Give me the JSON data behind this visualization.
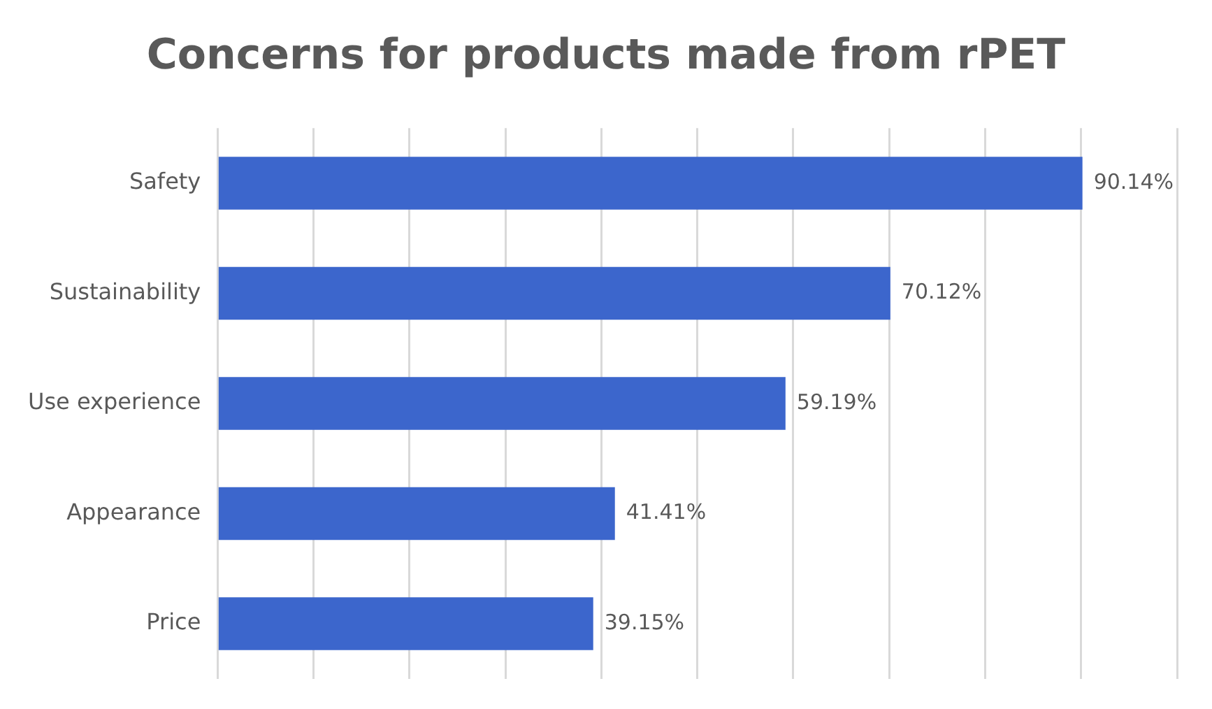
{
  "chart_data": {
    "type": "bar",
    "orientation": "horizontal",
    "title": "Concerns for products made from rPET",
    "categories": [
      "Safety",
      "Sustainability",
      "Use experience",
      "Appearance",
      "Price"
    ],
    "values": [
      90.14,
      70.12,
      59.19,
      41.41,
      39.15
    ],
    "value_labels": [
      "90.14%",
      "70.12%",
      "59.19%",
      "41.41%",
      "39.15%"
    ],
    "color": "#3c66cc",
    "xlim": [
      0,
      100
    ],
    "xticks": [
      {
        "value": 0,
        "label": null
      },
      {
        "value": 10,
        "label": null
      },
      {
        "value": 20,
        "label": null
      },
      {
        "value": 30,
        "label": null
      },
      {
        "value": 40,
        "label": null
      },
      {
        "value": 50,
        "label": null
      },
      {
        "value": 60,
        "label": null
      },
      {
        "value": 70,
        "label": null
      },
      {
        "value": 80,
        "label": null
      },
      {
        "value": 90,
        "label": null
      },
      {
        "value": 100,
        "label": null
      }
    ],
    "grid": "x",
    "tick_labels": "y",
    "legend": false
  }
}
